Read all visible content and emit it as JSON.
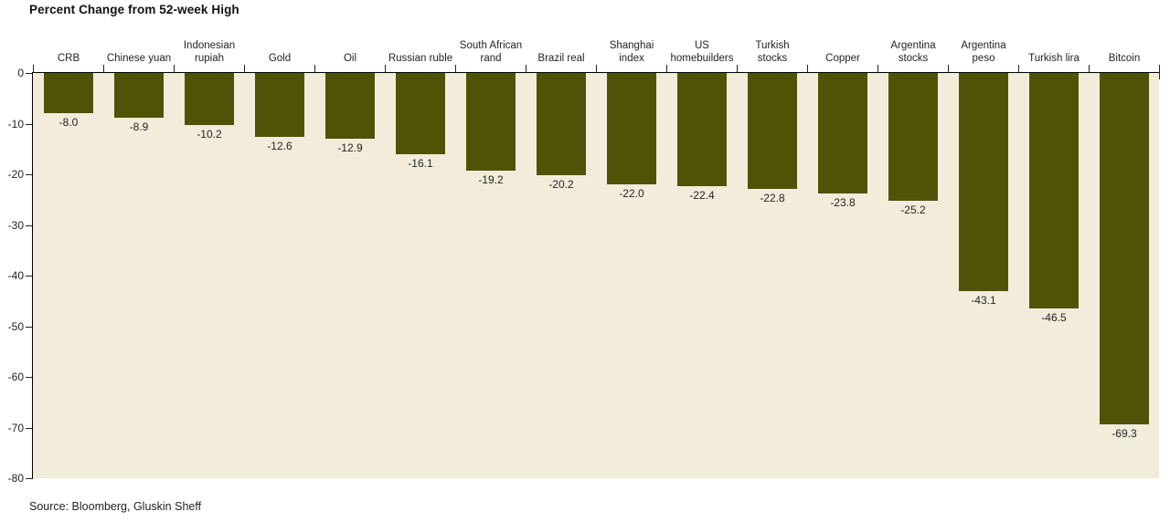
{
  "source_note": "Source: Bloomberg, Gluskin Sheff",
  "colors": {
    "bar": "#4E5306",
    "plot_background": "#F2EDDB",
    "page_background": "#FFFFFF",
    "axis": "#000000",
    "text": "#232323",
    "title_text": "#111111"
  },
  "chart_data": {
    "type": "bar",
    "orientation": "vertical",
    "title": "Percent Change from 52-week High",
    "categories": [
      "CRB",
      "Chinese yuan",
      "Indonesian rupiah",
      "Gold",
      "Oil",
      "Russian ruble",
      "South African rand",
      "Brazil real",
      "Shanghai index",
      "US homebuilders",
      "Turkish stocks",
      "Copper",
      "Argentina stocks",
      "Argentina peso",
      "Turkish lira",
      "Bitcoin"
    ],
    "category_lines": [
      [
        "CRB"
      ],
      [
        "Chinese yuan"
      ],
      [
        "Indonesian",
        "rupiah"
      ],
      [
        "Gold"
      ],
      [
        "Oil"
      ],
      [
        "Russian ruble"
      ],
      [
        "South African",
        "rand"
      ],
      [
        "Brazil real"
      ],
      [
        "Shanghai",
        "index"
      ],
      [
        "US",
        "homebuilders"
      ],
      [
        "Turkish",
        "stocks"
      ],
      [
        "Copper"
      ],
      [
        "Argentina",
        "stocks"
      ],
      [
        "Argentina",
        "peso"
      ],
      [
        "Turkish lira"
      ],
      [
        "Bitcoin"
      ]
    ],
    "values": [
      -8.0,
      -8.9,
      -10.2,
      -12.6,
      -12.9,
      -16.1,
      -19.2,
      -20.2,
      -22.0,
      -22.4,
      -22.8,
      -23.8,
      -25.2,
      -43.1,
      -46.5,
      -69.3
    ],
    "value_label_decimals": 1,
    "xlabel": "",
    "ylabel": "",
    "ylim": [
      -80,
      0
    ],
    "yticks": [
      0,
      -10,
      -20,
      -30,
      -40,
      -50,
      -60,
      -70,
      -80
    ],
    "grid": false,
    "legend": "none"
  }
}
